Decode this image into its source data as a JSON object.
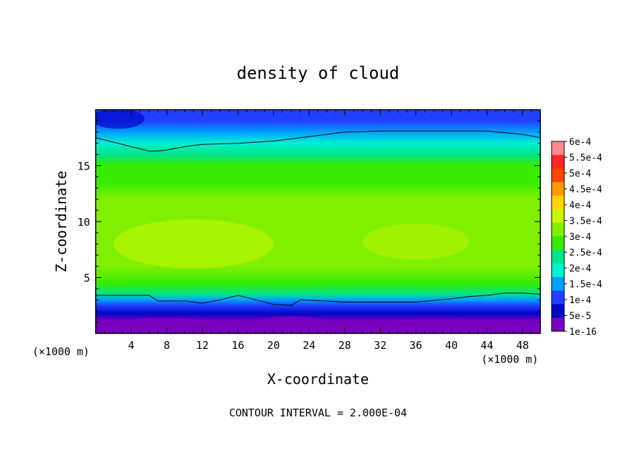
{
  "chart_data": {
    "type": "heatmap",
    "title": "density of cloud",
    "xlabel": "X-coordinate",
    "ylabel": "Z-coordinate",
    "x_unit": "(×1000 m)",
    "footer": "CONTOUR INTERVAL = 2.000E-04",
    "xlim": [
      0,
      50
    ],
    "ylim": [
      0,
      20
    ],
    "x_ticks": [
      4,
      8,
      12,
      16,
      20,
      24,
      28,
      32,
      36,
      40,
      44,
      48
    ],
    "y_ticks": [
      5,
      10,
      15
    ],
    "colorbar": {
      "labels": [
        "6e-4",
        "5.5e-4",
        "5e-4",
        "4.5e-4",
        "4e-4",
        "3.5e-4",
        "3e-4",
        "2.5e-4",
        "2e-4",
        "1.5e-4",
        "1e-4",
        "5e-5",
        "1e-16"
      ],
      "colors": [
        "#ff8c8c",
        "#ff2626",
        "#ff4500",
        "#ff9900",
        "#ffd400",
        "#c8f500",
        "#80f000",
        "#38ec00",
        "#00e48a",
        "#00f0d2",
        "#00a0ff",
        "#2040ff",
        "#0008c8",
        "#7a00c0"
      ]
    },
    "contour_level": 0.0002,
    "field_profile": {
      "z": [
        0.3,
        1.1,
        1.8,
        2.5,
        3.0,
        3.5,
        4.5,
        6.0,
        7.5,
        9.0,
        10.5,
        12.0,
        13.5,
        15.0,
        16.0,
        17.0,
        18.0,
        19.0,
        19.7
      ],
      "density": [
        1e-16,
        2e-05,
        6e-05,
        0.00012,
        0.00017,
        0.00023,
        0.00026,
        0.0003,
        0.00033,
        0.00034,
        0.00033,
        0.00031,
        0.00029,
        0.00026,
        0.000235,
        0.00021,
        0.00017,
        0.000125,
        9e-05
      ]
    },
    "contour_top": {
      "x": [
        0,
        2,
        4,
        6,
        7,
        8,
        10,
        12,
        16,
        20,
        24,
        28,
        32,
        36,
        40,
        44,
        48,
        50
      ],
      "z": [
        17.5,
        17.1,
        16.7,
        16.3,
        16.3,
        16.4,
        16.7,
        16.9,
        17.0,
        17.2,
        17.6,
        18.0,
        18.1,
        18.1,
        18.1,
        18.1,
        17.8,
        17.5
      ]
    },
    "contour_bottom": {
      "x": [
        0,
        4,
        6,
        7,
        10,
        12,
        14,
        16,
        18,
        20,
        22,
        23,
        26,
        28,
        32,
        36,
        40,
        42,
        44,
        46,
        48,
        50
      ],
      "z": [
        3.4,
        3.4,
        3.4,
        2.9,
        2.9,
        2.7,
        3.0,
        3.4,
        3.0,
        2.6,
        2.5,
        3.0,
        2.9,
        2.8,
        2.8,
        2.8,
        3.1,
        3.3,
        3.4,
        3.6,
        3.6,
        3.5
      ]
    }
  }
}
